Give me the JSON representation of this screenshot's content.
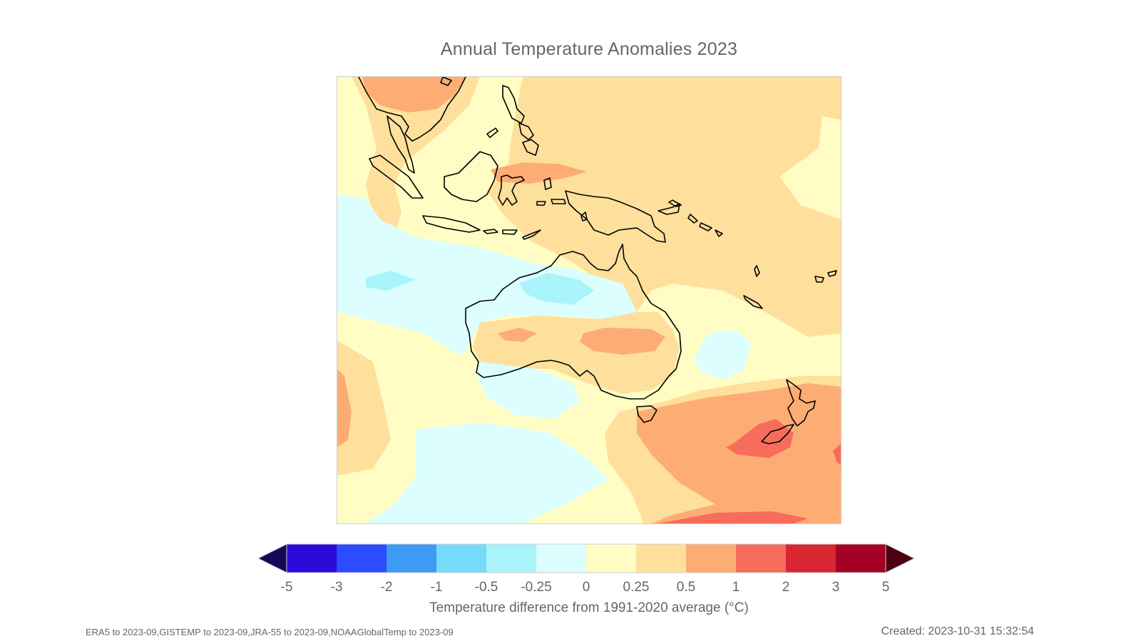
{
  "title": "Annual Temperature Anomalies 2023",
  "colorbar": {
    "label": "Temperature difference from 1991-2020 average (°C)",
    "ticks": [
      "-5",
      "-3",
      "-2",
      "-1",
      "-0.5",
      "-0.25",
      "0",
      "0.25",
      "0.5",
      "1",
      "2",
      "3",
      "5"
    ],
    "colors": [
      "#2a0ad8",
      "#2d4bff",
      "#3d9af5",
      "#76dbfb",
      "#a9f4fa",
      "#dcfefe",
      "#fffdc4",
      "#fee09c",
      "#fdad74",
      "#f86c5b",
      "#d82632",
      "#a50026"
    ],
    "under_color": "#140a58",
    "over_color": "#4c0011"
  },
  "footer": {
    "sources": "ERA5 to 2023-09,GISTEMP to 2023-09,JRA-55 to 2023-09,NOAAGlobalTemp to 2023-09",
    "created": "Created: 2023-10-31 15:32:54"
  }
}
